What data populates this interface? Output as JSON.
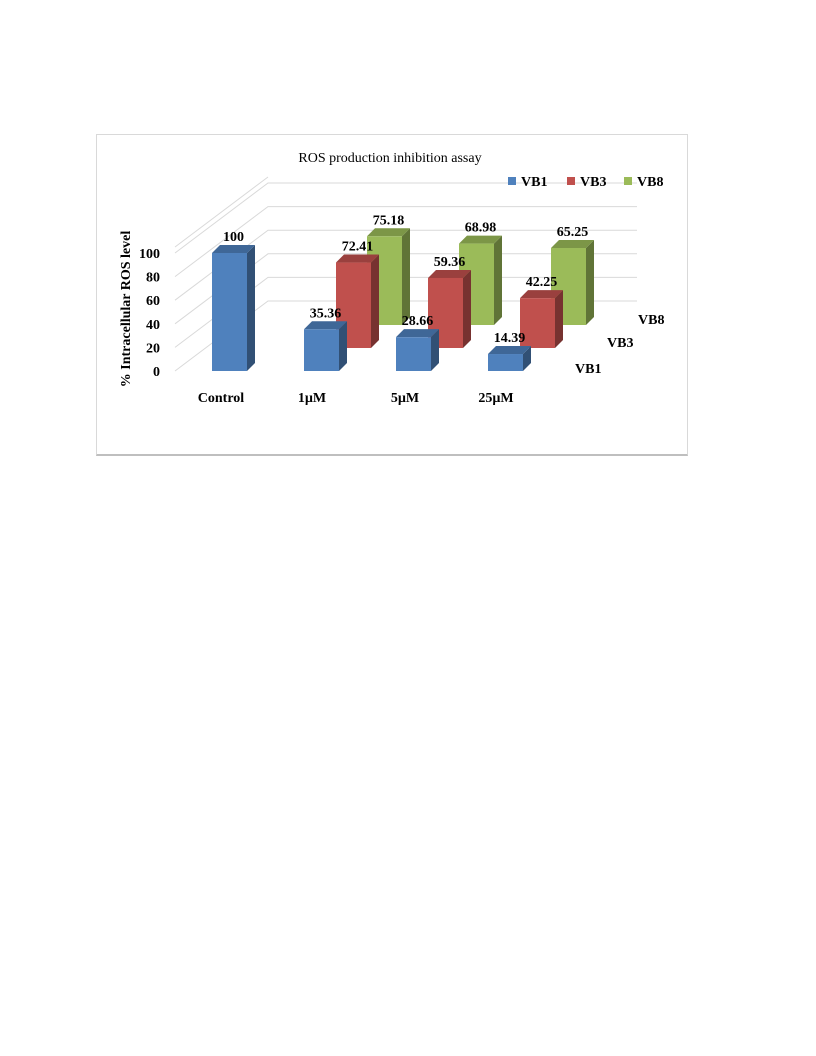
{
  "chart_data": {
    "type": "bar",
    "title": "ROS production inhibition assay",
    "ylabel": "% Intracellular  ROS level",
    "xlabel": "",
    "ylim": [
      0,
      100
    ],
    "yticks": [
      "0",
      "20",
      "40",
      "60",
      "80",
      "100"
    ],
    "categories": [
      "Control",
      "1µM",
      "5µM",
      "25µM"
    ],
    "depth_labels": [
      "VB1",
      "VB3",
      "VB8"
    ],
    "legend_position": "top-right",
    "series": [
      {
        "name": "VB1",
        "color": "#4f81bd",
        "values": [
          100,
          35.36,
          28.66,
          14.39
        ],
        "labels": [
          "100",
          "35.36",
          "28.66",
          "14.39"
        ]
      },
      {
        "name": "VB3",
        "color": "#c0504d",
        "values": [
          null,
          72.41,
          59.36,
          42.25
        ],
        "labels": [
          "",
          "72.41",
          "59.36",
          "42.25"
        ]
      },
      {
        "name": "VB8",
        "color": "#9bbb59",
        "values": [
          null,
          75.18,
          68.98,
          65.25
        ],
        "labels": [
          "",
          "75.18",
          "68.98",
          "65.25"
        ]
      }
    ]
  }
}
